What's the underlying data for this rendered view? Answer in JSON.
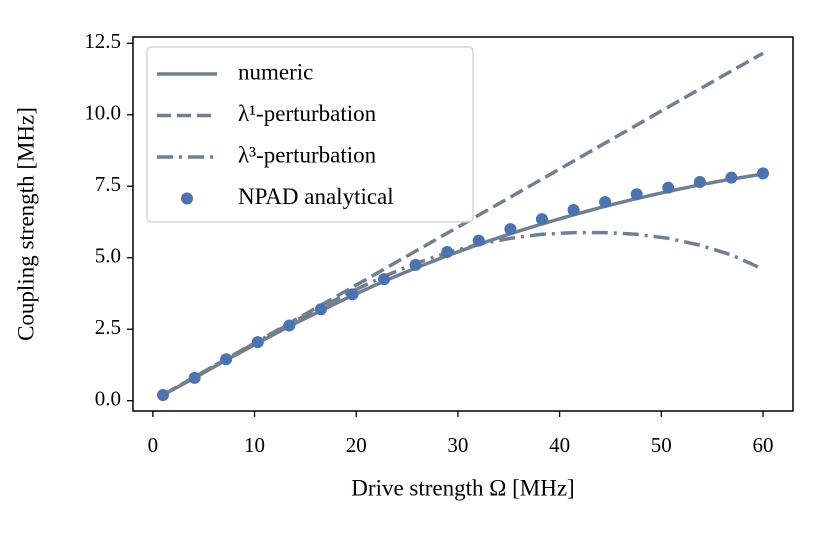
{
  "chart_data": {
    "type": "line",
    "x_label": "Drive strength Ω [MHz]",
    "y_label": "Coupling strength [MHz]",
    "x": [
      1,
      4.11,
      7.21,
      10.32,
      13.42,
      16.53,
      19.63,
      22.74,
      25.84,
      28.95,
      32.05,
      35.16,
      38.26,
      41.37,
      44.47,
      47.58,
      50.68,
      53.79,
      56.89,
      60
    ],
    "series": [
      {
        "name": "numeric",
        "color": "#708090",
        "style": "solid",
        "values": [
          0.2,
          0.8,
          1.42,
          2.02,
          2.6,
          3.15,
          3.68,
          4.18,
          4.64,
          5.07,
          5.47,
          5.84,
          6.18,
          6.5,
          6.8,
          7.07,
          7.32,
          7.55,
          7.75,
          7.93
        ]
      },
      {
        "name": "λ¹-perturbation",
        "color": "#708090",
        "style": "dashed",
        "values": [
          0.2,
          0.83,
          1.46,
          2.08,
          2.71,
          3.34,
          3.97,
          4.6,
          5.23,
          5.86,
          6.49,
          7.12,
          7.75,
          8.38,
          9.01,
          9.64,
          10.27,
          10.9,
          11.53,
          12.15
        ]
      },
      {
        "name": "λ³-perturbation",
        "color": "#708090",
        "style": "dashdot",
        "values": [
          0.2,
          0.83,
          1.46,
          2.07,
          2.68,
          3.27,
          3.83,
          4.35,
          4.8,
          5.18,
          5.47,
          5.68,
          5.82,
          5.88,
          5.88,
          5.82,
          5.68,
          5.44,
          5.1,
          4.6
        ]
      },
      {
        "name": "NPAD analytical",
        "color": "#4c72b0",
        "style": "markers",
        "values": [
          0.2,
          0.8,
          1.45,
          2.05,
          2.63,
          3.2,
          3.72,
          4.25,
          4.75,
          5.2,
          5.6,
          6.0,
          6.35,
          6.67,
          6.95,
          7.22,
          7.45,
          7.65,
          7.8,
          7.95
        ]
      }
    ],
    "xlim": [
      -1.95,
      62.95
    ],
    "ylim": [
      -0.36,
      12.72
    ],
    "xticks": [
      0,
      10,
      20,
      30,
      40,
      50,
      60
    ],
    "yticks": [
      {
        "value": 0,
        "label": "0.0"
      },
      2.5,
      {
        "value": 5,
        "label": "5.0"
      },
      7.5,
      {
        "value": 10,
        "label": "10.0"
      },
      12.5
    ],
    "legend": "upper left"
  }
}
